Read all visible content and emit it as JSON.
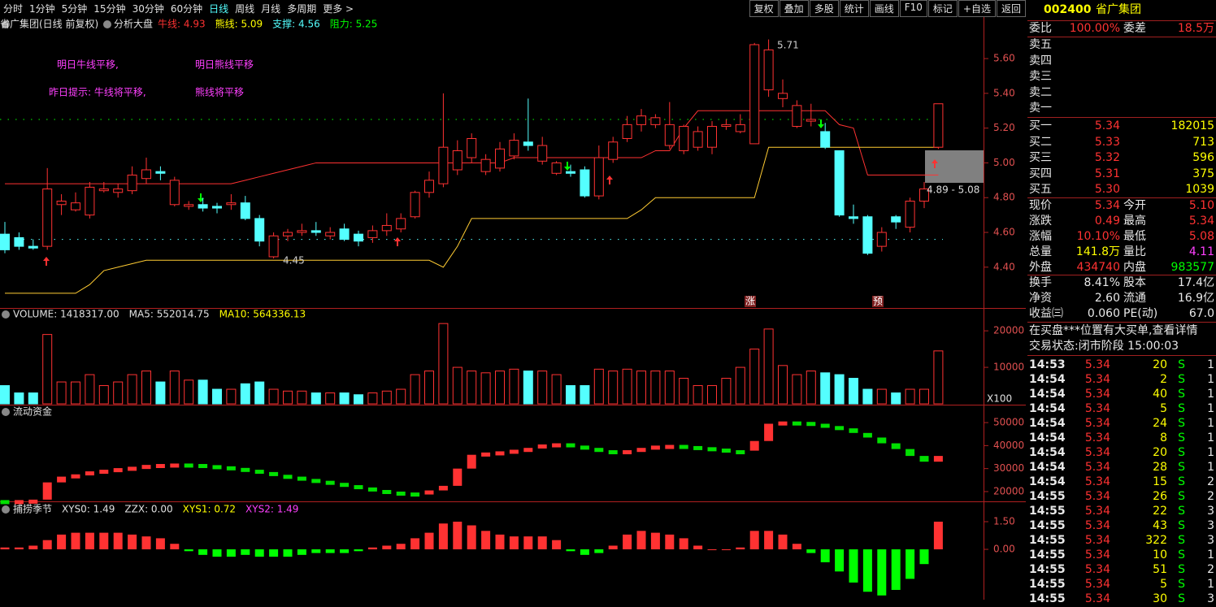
{
  "toolbar": {
    "left": [
      "分时",
      "1分钟",
      "5分钟",
      "15分钟",
      "30分钟",
      "60分钟",
      "日线",
      "周线",
      "月线",
      "多周期",
      "更多 >"
    ],
    "selected": "日线",
    "right": [
      "复权",
      "叠加",
      "多股",
      "统计",
      "画线",
      "F10",
      "标记",
      "+自选",
      "返回"
    ]
  },
  "chart_data": [
    {
      "type": "candlestick",
      "title": "省广集团(日线 前复权)",
      "indicator": "分析大盘",
      "legend": [
        {
          "text": "牛线: 4.93",
          "color": "#ff3232"
        },
        {
          "text": "熊线: 5.09",
          "color": "#ffff00"
        },
        {
          "text": "支撑: 4.56",
          "color": "#54ffff"
        },
        {
          "text": "阻力: 5.25",
          "color": "#00ff00"
        }
      ],
      "annotations": [
        "明日牛线平移,",
        "明日熊线平移",
        "昨日提示: 牛线将平移,",
        "熊线将平移"
      ],
      "high_label": "5.71",
      "low_label": "4.45",
      "range_label": "4.89 - 5.08",
      "markers": [
        "涨",
        "预"
      ],
      "ylim": [
        4.17,
        5.75
      ],
      "yticks": [
        {
          "value": 5.6,
          "label": "5.60"
        },
        {
          "value": 5.4,
          "label": "5.40"
        },
        {
          "value": 5.2,
          "label": "5.20"
        },
        {
          "value": 5.0,
          "label": "5.00"
        },
        {
          "value": 4.8,
          "label": "4.80"
        },
        {
          "value": 4.6,
          "label": "4.60"
        },
        {
          "value": 4.4,
          "label": "4.40"
        }
      ],
      "hlines": [
        {
          "value": 5.25,
          "color": "#00ff00"
        },
        {
          "value": 4.56,
          "color": "#54ffff"
        }
      ],
      "series": [
        {
          "name": "牛线",
          "color": "#ff3232",
          "values": [
            4.88,
            4.88,
            4.88,
            4.88,
            4.88,
            4.88,
            4.88,
            4.88,
            4.88,
            4.88,
            4.88,
            4.88,
            4.88,
            4.88,
            4.88,
            4.88,
            4.88,
            4.9,
            4.92,
            4.94,
            4.96,
            4.98,
            5.0,
            5.0,
            5.0,
            5.0,
            5.0,
            5.0,
            5.0,
            5.0,
            5.0,
            5.0,
            5.0,
            5.0,
            5.0,
            5.0,
            5.03,
            5.03,
            5.03,
            5.03,
            5.03,
            5.03,
            5.03,
            5.03,
            5.03,
            5.03,
            5.07,
            5.07,
            5.2,
            5.3,
            5.3,
            5.3,
            5.3,
            5.3,
            5.3,
            5.3,
            5.3,
            5.3,
            5.3,
            5.22,
            5.2,
            4.93,
            4.93,
            4.93,
            4.93,
            4.93,
            4.93
          ]
        },
        {
          "name": "熊线",
          "color": "#ffcc33",
          "values": [
            4.25,
            4.25,
            4.25,
            4.25,
            4.25,
            4.25,
            4.3,
            4.38,
            4.4,
            4.42,
            4.44,
            4.44,
            4.44,
            4.44,
            4.44,
            4.44,
            4.44,
            4.44,
            4.44,
            4.44,
            4.44,
            4.44,
            4.44,
            4.44,
            4.44,
            4.44,
            4.44,
            4.44,
            4.44,
            4.44,
            4.44,
            4.4,
            4.52,
            4.68,
            4.68,
            4.68,
            4.68,
            4.68,
            4.68,
            4.68,
            4.68,
            4.68,
            4.68,
            4.68,
            4.68,
            4.73,
            4.8,
            4.8,
            4.8,
            4.8,
            4.8,
            4.8,
            4.8,
            4.8,
            5.09,
            5.09,
            5.09,
            5.09,
            5.09,
            5.09,
            5.09,
            5.09,
            5.09,
            5.09,
            5.09,
            5.09,
            5.09
          ]
        }
      ],
      "ohlc": [
        [
          4.59,
          4.66,
          4.48,
          4.5
        ],
        [
          4.57,
          4.6,
          4.5,
          4.52
        ],
        [
          4.52,
          4.56,
          4.5,
          4.51
        ],
        [
          4.52,
          4.97,
          4.5,
          4.85
        ],
        [
          4.76,
          4.82,
          4.7,
          4.78
        ],
        [
          4.73,
          4.83,
          4.72,
          4.77
        ],
        [
          4.7,
          4.89,
          4.68,
          4.86
        ],
        [
          4.84,
          4.89,
          4.83,
          4.85
        ],
        [
          4.83,
          4.88,
          4.8,
          4.85
        ],
        [
          4.84,
          4.98,
          4.82,
          4.93
        ],
        [
          4.91,
          5.03,
          4.88,
          4.96
        ],
        [
          4.95,
          4.98,
          4.9,
          4.94
        ],
        [
          4.76,
          4.92,
          4.75,
          4.9
        ],
        [
          4.75,
          4.78,
          4.73,
          4.76
        ],
        [
          4.76,
          4.8,
          4.72,
          4.74
        ],
        [
          4.75,
          4.77,
          4.71,
          4.74
        ],
        [
          4.76,
          4.82,
          4.73,
          4.77
        ],
        [
          4.77,
          4.81,
          4.67,
          4.68
        ],
        [
          4.68,
          4.7,
          4.52,
          4.55
        ],
        [
          4.46,
          4.6,
          4.45,
          4.58
        ],
        [
          4.58,
          4.62,
          4.55,
          4.6
        ],
        [
          4.6,
          4.65,
          4.58,
          4.61
        ],
        [
          4.61,
          4.66,
          4.58,
          4.6
        ],
        [
          4.58,
          4.63,
          4.56,
          4.6
        ],
        [
          4.62,
          4.65,
          4.55,
          4.56
        ],
        [
          4.59,
          4.61,
          4.52,
          4.55
        ],
        [
          4.57,
          4.64,
          4.54,
          4.61
        ],
        [
          4.61,
          4.71,
          4.58,
          4.64
        ],
        [
          4.62,
          4.71,
          4.6,
          4.68
        ],
        [
          4.69,
          4.84,
          4.68,
          4.83
        ],
        [
          4.83,
          4.95,
          4.8,
          4.9
        ],
        [
          4.88,
          5.4,
          4.86,
          5.09
        ],
        [
          4.96,
          5.13,
          4.93,
          5.07
        ],
        [
          5.03,
          5.17,
          5.0,
          5.14
        ],
        [
          4.95,
          5.05,
          4.93,
          5.02
        ],
        [
          4.97,
          5.12,
          4.95,
          5.08
        ],
        [
          5.04,
          5.17,
          5.02,
          5.13
        ],
        [
          5.12,
          5.37,
          5.07,
          5.1
        ],
        [
          5.01,
          5.15,
          4.99,
          5.1
        ],
        [
          4.94,
          5.01,
          4.93,
          5.0
        ],
        [
          4.95,
          4.99,
          4.92,
          4.94
        ],
        [
          4.96,
          4.98,
          4.8,
          4.81
        ],
        [
          4.81,
          5.1,
          4.79,
          5.03
        ],
        [
          5.02,
          5.15,
          5.0,
          5.12
        ],
        [
          5.14,
          5.27,
          5.12,
          5.22
        ],
        [
          5.22,
          5.31,
          5.18,
          5.27
        ],
        [
          5.22,
          5.28,
          5.2,
          5.26
        ],
        [
          5.1,
          5.35,
          5.08,
          5.22
        ],
        [
          5.07,
          5.22,
          5.05,
          5.21
        ],
        [
          5.09,
          5.21,
          5.07,
          5.18
        ],
        [
          5.09,
          5.24,
          5.05,
          5.21
        ],
        [
          5.21,
          5.25,
          5.19,
          5.22
        ],
        [
          5.18,
          5.28,
          5.17,
          5.22
        ],
        [
          5.11,
          5.69,
          5.11,
          5.68
        ],
        [
          5.42,
          5.71,
          5.38,
          5.65
        ],
        [
          5.37,
          5.48,
          5.32,
          5.4
        ],
        [
          5.21,
          5.36,
          5.2,
          5.33
        ],
        [
          5.24,
          5.34,
          5.21,
          5.25
        ],
        [
          5.18,
          5.23,
          5.08,
          5.09
        ],
        [
          5.07,
          5.07,
          4.69,
          4.7
        ],
        [
          4.69,
          4.76,
          4.65,
          4.68
        ],
        [
          4.69,
          4.7,
          4.47,
          4.48
        ],
        [
          4.52,
          4.63,
          4.49,
          4.6
        ],
        [
          4.69,
          4.7,
          4.62,
          4.66
        ],
        [
          4.63,
          4.8,
          4.6,
          4.78
        ],
        [
          4.78,
          4.89,
          4.74,
          4.85
        ],
        [
          5.09,
          5.34,
          5.08,
          5.34
        ]
      ]
    },
    {
      "type": "volume",
      "legend": [
        {
          "text": "VOLUME: 1418317.00",
          "color": "#e0e0e0"
        },
        {
          "text": "MA5: 552014.75",
          "color": "#e0e0e0"
        },
        {
          "text": "MA10: 564336.13",
          "color": "#ffff00"
        }
      ],
      "unit": "X100",
      "ylim": [
        0,
        22700
      ],
      "yticks": [
        10000,
        20000
      ],
      "values": [
        5000,
        3000,
        3000,
        19000,
        6000,
        6000,
        8000,
        5000,
        6000,
        8000,
        9000,
        6000,
        9000,
        6500,
        6500,
        4000,
        4000,
        5500,
        6000,
        4000,
        3500,
        3500,
        3000,
        3000,
        3000,
        2500,
        3000,
        3500,
        4000,
        8000,
        9000,
        22000,
        10000,
        9000,
        8500,
        9000,
        9500,
        9000,
        9000,
        8000,
        5000,
        5000,
        9500,
        9000,
        9500,
        9000,
        9000,
        9000,
        7000,
        5000,
        5000,
        7000,
        10000,
        15000,
        20500,
        10500,
        8000,
        9000,
        8500,
        8000,
        7000,
        4000,
        4000,
        3000,
        4000,
        4000,
        14500
      ]
    },
    {
      "type": "flow",
      "title": "流动资金",
      "ylim": [
        16100,
        52500
      ],
      "yticks": [
        20000,
        30000,
        40000,
        50000
      ],
      "values": [
        16300,
        16300,
        16500,
        24000,
        26500,
        27500,
        28800,
        29500,
        30200,
        30800,
        31600,
        32000,
        32200,
        32000,
        31500,
        31000,
        30300,
        29500,
        28500,
        27300,
        26500,
        25500,
        24700,
        23800,
        22800,
        21800,
        20700,
        20000,
        19600,
        19000,
        20500,
        22500,
        30000,
        36000,
        37000,
        37500,
        38200,
        39000,
        40500,
        41000,
        40000,
        39000,
        38000,
        37500,
        38000,
        39000,
        40000,
        40300,
        39800,
        39300,
        38700,
        38000,
        37800,
        42000,
        49500,
        50500,
        50300,
        49500,
        48500,
        47500,
        45500,
        43500,
        41000,
        38500,
        35500,
        33000,
        35500
      ]
    },
    {
      "type": "histogram",
      "title": "捕捞季节",
      "legend": [
        {
          "text": "XYS0: 1.49",
          "color": "#e0e0e0"
        },
        {
          "text": "ZZX: 0.00",
          "color": "#e0e0e0"
        },
        {
          "text": "XYS1: 0.72",
          "color": "#ffff00"
        },
        {
          "text": "XYS2: 1.49",
          "color": "#ff40ff"
        }
      ],
      "ylim": [
        -2.73,
        1.94
      ],
      "yticks": [
        {
          "value": 1.5,
          "label": "1.50"
        },
        {
          "value": 0,
          "label": "0.00"
        }
      ],
      "values": [
        0.1,
        0.1,
        0.2,
        0.5,
        0.8,
        0.9,
        0.9,
        0.9,
        0.9,
        0.8,
        0.7,
        0.6,
        0.3,
        -0.1,
        -0.3,
        -0.4,
        -0.4,
        -0.3,
        -0.4,
        -0.4,
        -0.4,
        -0.3,
        -0.2,
        -0.2,
        -0.2,
        -0.1,
        0.1,
        0.2,
        0.3,
        0.6,
        0.9,
        1.4,
        1.5,
        1.3,
        1.0,
        0.8,
        0.7,
        0.7,
        0.7,
        0.5,
        -0.1,
        -0.3,
        -0.2,
        0.2,
        0.8,
        1.0,
        0.9,
        0.8,
        0.6,
        0.2,
        0.0,
        0.0,
        0.1,
        1.0,
        1.0,
        0.8,
        0.3,
        -0.2,
        -0.7,
        -1.2,
        -1.8,
        -2.3,
        -2.5,
        -2.2,
        -1.6,
        -0.8,
        1.5
      ]
    }
  ],
  "quote": {
    "code": "002400",
    "name": "省广集团",
    "ratio": [
      "委比",
      "100.00%",
      "委差",
      "18.5万"
    ],
    "sell": [
      "卖五",
      "卖四",
      "卖三",
      "卖二",
      "卖一"
    ],
    "buy": [
      [
        "买一",
        "5.34",
        "182015"
      ],
      [
        "买二",
        "5.33",
        "713"
      ],
      [
        "买三",
        "5.32",
        "596"
      ],
      [
        "买四",
        "5.31",
        "375"
      ],
      [
        "买五",
        "5.30",
        "1039"
      ]
    ],
    "stats": [
      [
        "现价",
        "5.34",
        "今开",
        "5.10"
      ],
      [
        "涨跌",
        "0.49",
        "最高",
        "5.34"
      ],
      [
        "涨幅",
        "10.10%",
        "最低",
        "5.08"
      ],
      [
        "总量",
        "141.8万",
        "量比",
        "4.11"
      ],
      [
        "外盘",
        "434740",
        "内盘",
        "983577"
      ]
    ],
    "finance": [
      [
        "换手",
        "8.41%",
        "股本",
        "17.4亿"
      ],
      [
        "净资",
        "2.60",
        "流通",
        "16.9亿"
      ],
      [
        "收益㈢",
        "0.060",
        "PE(动)",
        "67.0"
      ]
    ],
    "notice": "在买盘***位置有大买单,查看详情",
    "status": "交易状态:闭市阶段 15:00:03",
    "trades": [
      [
        "14:53",
        "5.34",
        "20",
        "S",
        "1"
      ],
      [
        "14:54",
        "5.34",
        "2",
        "S",
        "1"
      ],
      [
        "14:54",
        "5.34",
        "40",
        "S",
        "1"
      ],
      [
        "14:54",
        "5.34",
        "5",
        "S",
        "1"
      ],
      [
        "14:54",
        "5.34",
        "24",
        "S",
        "1"
      ],
      [
        "14:54",
        "5.34",
        "8",
        "S",
        "1"
      ],
      [
        "14:54",
        "5.34",
        "20",
        "S",
        "1"
      ],
      [
        "14:54",
        "5.34",
        "28",
        "S",
        "1"
      ],
      [
        "14:54",
        "5.34",
        "15",
        "S",
        "2"
      ],
      [
        "14:55",
        "5.34",
        "26",
        "S",
        "2"
      ],
      [
        "14:55",
        "5.34",
        "22",
        "S",
        "3"
      ],
      [
        "14:55",
        "5.34",
        "43",
        "S",
        "3"
      ],
      [
        "14:55",
        "5.34",
        "322",
        "S",
        "3"
      ],
      [
        "14:55",
        "5.34",
        "10",
        "S",
        "1"
      ],
      [
        "14:55",
        "5.34",
        "51",
        "S",
        "2"
      ],
      [
        "14:55",
        "5.34",
        "5",
        "S",
        "1"
      ],
      [
        "14:55",
        "5.34",
        "30",
        "S",
        "3"
      ]
    ]
  }
}
